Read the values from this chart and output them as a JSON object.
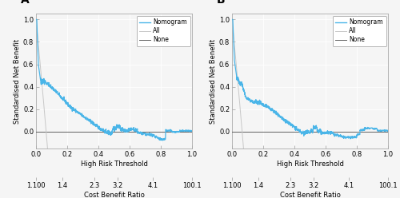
{
  "panel_A_label": "A",
  "panel_B_label": "B",
  "xlabel_top": "High Risk Threshold",
  "xlabel_bottom": "Cost Benefit Ratio",
  "ylabel": "Standardised Net Benefit",
  "legend_labels": [
    "Nomogram",
    "All",
    "None"
  ],
  "nomogram_color": "#4ab5e8",
  "all_color": "#c8c8c8",
  "none_color": "#606060",
  "background_color": "#f5f5f5",
  "plot_bg_color": "#f5f5f5",
  "grid_color": "#ffffff",
  "border_color": "#aaaaaa",
  "x_ticks_top": [
    0.0,
    0.2,
    0.4,
    0.6,
    0.8,
    1.0
  ],
  "x_tick_labels_top": [
    "0.0",
    "0.2",
    "0.4",
    "0.6",
    "0.8",
    "1.0"
  ],
  "cbr_tick_positions": [
    0.0,
    0.167,
    0.375,
    0.524,
    0.75,
    1.0
  ],
  "cbr_tick_labels": [
    "1.100",
    "1.4",
    "2.3",
    "3.2",
    "4.1",
    "100.1"
  ],
  "ylim": [
    -0.15,
    1.05
  ],
  "y_ticks": [
    0.0,
    0.2,
    0.4,
    0.6,
    0.8,
    1.0
  ],
  "y_tick_labels": [
    "0.0",
    "0.2",
    "0.4",
    "0.6",
    "0.8",
    "1.0"
  ],
  "font_size_ticks": 6,
  "font_size_label": 6,
  "font_size_legend": 5.5,
  "font_size_panel": 10
}
